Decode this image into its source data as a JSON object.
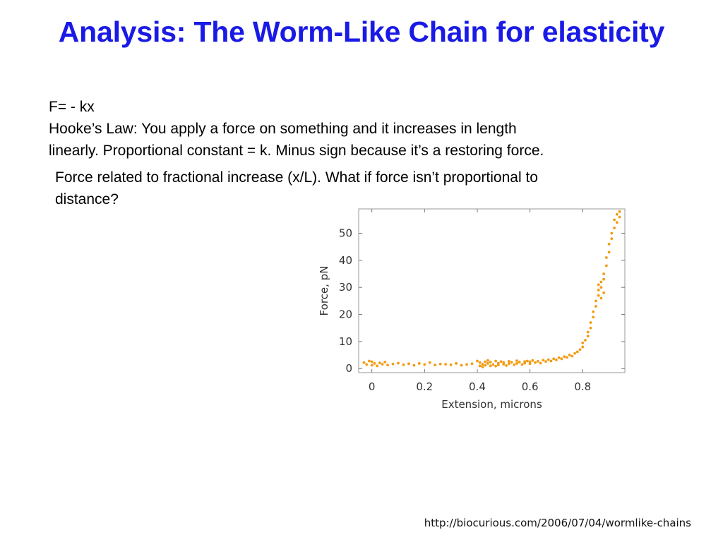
{
  "slide": {
    "title": "Analysis: The Worm-Like Chain for elasticity",
    "formula": "F= - kx",
    "hooke_line1": "Hooke’s Law: You apply a force on something and it increases in length",
    "hooke_line2": "linearly. Proportional constant = k. Minus sign because it’s a restoring force.",
    "question_line1": "Force related to fractional increase (x/L). What if force isn’t proportional to",
    "question_line2": "distance?",
    "source_url": "http://biocurious.com/2006/07/04/wormlike-chains"
  },
  "colors": {
    "title": "#1a1ae6",
    "points": "#f39b12"
  },
  "chart_data": {
    "type": "scatter",
    "title": "",
    "xlabel": "Extension, microns",
    "ylabel": "Force, pN",
    "xlim": [
      -0.05,
      0.96
    ],
    "ylim": [
      -1.5,
      59
    ],
    "xticks": [
      0,
      0.2,
      0.4,
      0.6,
      0.8
    ],
    "xtick_labels": [
      "0",
      "0.2",
      "0.4",
      "0.6",
      "0.8"
    ],
    "yticks": [
      0,
      10,
      20,
      30,
      40,
      50
    ],
    "ytick_labels": [
      "0",
      "10",
      "20",
      "30",
      "40",
      "50"
    ],
    "grid": false,
    "legend": "none",
    "series": [
      {
        "points": [
          [
            -0.03,
            2.2
          ],
          [
            -0.02,
            1.5
          ],
          [
            -0.01,
            2.8
          ],
          [
            0.0,
            1.2
          ],
          [
            0.0,
            2.5
          ],
          [
            0.01,
            1.9
          ],
          [
            0.02,
            1.0
          ],
          [
            0.03,
            2.1
          ],
          [
            0.04,
            1.6
          ],
          [
            0.05,
            2.4
          ],
          [
            0.06,
            1.3
          ],
          [
            0.08,
            1.7
          ],
          [
            0.1,
            2.0
          ],
          [
            0.12,
            1.4
          ],
          [
            0.14,
            1.8
          ],
          [
            0.16,
            1.2
          ],
          [
            0.18,
            1.9
          ],
          [
            0.2,
            1.5
          ],
          [
            0.22,
            2.2
          ],
          [
            0.24,
            1.3
          ],
          [
            0.26,
            1.7
          ],
          [
            0.28,
            1.6
          ],
          [
            0.3,
            1.4
          ],
          [
            0.32,
            1.9
          ],
          [
            0.34,
            1.2
          ],
          [
            0.36,
            1.5
          ],
          [
            0.38,
            1.8
          ],
          [
            0.4,
            2.8
          ],
          [
            0.41,
            1.0
          ],
          [
            0.41,
            2.2
          ],
          [
            0.42,
            1.6
          ],
          [
            0.42,
            0.6
          ],
          [
            0.43,
            2.5
          ],
          [
            0.43,
            1.2
          ],
          [
            0.44,
            3.0
          ],
          [
            0.44,
            1.9
          ],
          [
            0.45,
            1.0
          ],
          [
            0.45,
            2.4
          ],
          [
            0.46,
            1.5
          ],
          [
            0.47,
            2.8
          ],
          [
            0.47,
            0.9
          ],
          [
            0.48,
            2.0
          ],
          [
            0.48,
            1.3
          ],
          [
            0.49,
            2.6
          ],
          [
            0.5,
            1.6
          ],
          [
            0.5,
            2.2
          ],
          [
            0.51,
            1.1
          ],
          [
            0.52,
            2.7
          ],
          [
            0.52,
            1.8
          ],
          [
            0.53,
            2.3
          ],
          [
            0.54,
            1.4
          ],
          [
            0.55,
            2.9
          ],
          [
            0.55,
            1.9
          ],
          [
            0.56,
            2.4
          ],
          [
            0.57,
            1.5
          ],
          [
            0.58,
            2.6
          ],
          [
            0.58,
            2.0
          ],
          [
            0.59,
            2.8
          ],
          [
            0.6,
            1.8
          ],
          [
            0.6,
            2.5
          ],
          [
            0.61,
            3.0
          ],
          [
            0.62,
            2.2
          ],
          [
            0.63,
            2.7
          ],
          [
            0.64,
            2.0
          ],
          [
            0.65,
            3.1
          ],
          [
            0.66,
            2.6
          ],
          [
            0.67,
            3.3
          ],
          [
            0.68,
            2.8
          ],
          [
            0.69,
            3.6
          ],
          [
            0.7,
            3.2
          ],
          [
            0.71,
            4.0
          ],
          [
            0.72,
            3.6
          ],
          [
            0.73,
            4.4
          ],
          [
            0.74,
            4.1
          ],
          [
            0.75,
            5.0
          ],
          [
            0.76,
            4.6
          ],
          [
            0.77,
            5.6
          ],
          [
            0.78,
            6.2
          ],
          [
            0.79,
            7.0
          ],
          [
            0.8,
            8.0
          ],
          [
            0.8,
            9.5
          ],
          [
            0.81,
            10.5
          ],
          [
            0.82,
            12.0
          ],
          [
            0.82,
            13.5
          ],
          [
            0.83,
            15.0
          ],
          [
            0.83,
            17.0
          ],
          [
            0.84,
            19.0
          ],
          [
            0.84,
            21.0
          ],
          [
            0.85,
            23.0
          ],
          [
            0.85,
            25.0
          ],
          [
            0.86,
            27.0
          ],
          [
            0.86,
            29.0
          ],
          [
            0.86,
            31.0
          ],
          [
            0.87,
            30.0
          ],
          [
            0.87,
            26.0
          ],
          [
            0.87,
            32.0
          ],
          [
            0.88,
            28.0
          ],
          [
            0.88,
            33.0
          ],
          [
            0.88,
            35.0
          ],
          [
            0.89,
            38.0
          ],
          [
            0.89,
            41.0
          ],
          [
            0.9,
            43.0
          ],
          [
            0.9,
            46.0
          ],
          [
            0.91,
            48.0
          ],
          [
            0.91,
            50.0
          ],
          [
            0.92,
            52.0
          ],
          [
            0.92,
            55.0
          ],
          [
            0.93,
            54.0
          ],
          [
            0.93,
            57.0
          ],
          [
            0.94,
            56.0
          ],
          [
            0.94,
            58.0
          ]
        ]
      }
    ]
  }
}
